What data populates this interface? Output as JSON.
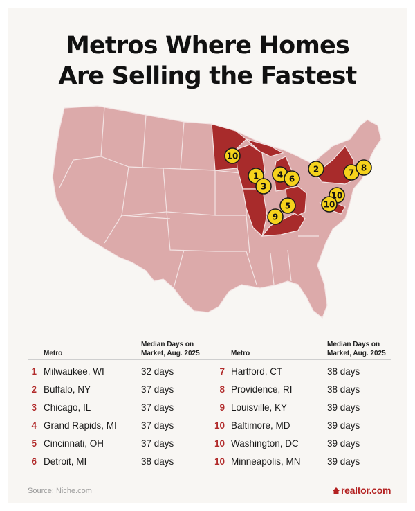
{
  "title": {
    "line1": "Metros Where Homes",
    "line2": "Are Selling the Fastest"
  },
  "colors": {
    "base_state": "#dcaaaa",
    "highlight_state": "#a82b2b",
    "state_border": "#f3e3e3",
    "marker_fill": "#f5d21c",
    "rank_text": "#b12a2a"
  },
  "map": {
    "highlighted_states": [
      "MN",
      "WI",
      "IL",
      "MI",
      "OH",
      "KY",
      "NY",
      "MD"
    ],
    "markers": [
      {
        "label": "10",
        "metro": "Minneapolis, MN"
      },
      {
        "label": "1",
        "metro": "Milwaukee, WI"
      },
      {
        "label": "3",
        "metro": "Chicago, IL"
      },
      {
        "label": "4",
        "metro": "Grand Rapids, MI"
      },
      {
        "label": "6",
        "metro": "Detroit, MI"
      },
      {
        "label": "5",
        "metro": "Cincinnati, OH"
      },
      {
        "label": "9",
        "metro": "Louisville, KY"
      },
      {
        "label": "2",
        "metro": "Buffalo, NY"
      },
      {
        "label": "7",
        "metro": "Hartford, CT"
      },
      {
        "label": "8",
        "metro": "Providence, RI"
      },
      {
        "label": "10",
        "metro": "Washington, DC"
      },
      {
        "label": "10",
        "metro": "Baltimore, MD"
      }
    ]
  },
  "table": {
    "headers": {
      "metro": "Metro",
      "days_line1": "Median Days on",
      "days_line2": "Market, Aug. 2025"
    },
    "left": [
      {
        "rank": "1",
        "metro": "Milwaukee, WI",
        "days": "32 days"
      },
      {
        "rank": "2",
        "metro": "Buffalo, NY",
        "days": "37 days"
      },
      {
        "rank": "3",
        "metro": "Chicago, IL",
        "days": "37 days"
      },
      {
        "rank": "4",
        "metro": "Grand Rapids, MI",
        "days": "37 days"
      },
      {
        "rank": "5",
        "metro": "Cincinnati, OH",
        "days": "37 days"
      },
      {
        "rank": "6",
        "metro": "Detroit, MI",
        "days": "38 days"
      }
    ],
    "right": [
      {
        "rank": "7",
        "metro": "Hartford, CT",
        "days": "38 days"
      },
      {
        "rank": "8",
        "metro": "Providence, RI",
        "days": "38 days"
      },
      {
        "rank": "9",
        "metro": "Louisville, KY",
        "days": "39 days"
      },
      {
        "rank": "10",
        "metro": "Baltimore, MD",
        "days": "39 days"
      },
      {
        "rank": "10",
        "metro": "Washington, DC",
        "days": "39 days"
      },
      {
        "rank": "10",
        "metro": "Minneapolis, MN",
        "days": "39 days"
      }
    ]
  },
  "footer": {
    "source": "Source: Niche.com",
    "logo": "realtor.com"
  }
}
